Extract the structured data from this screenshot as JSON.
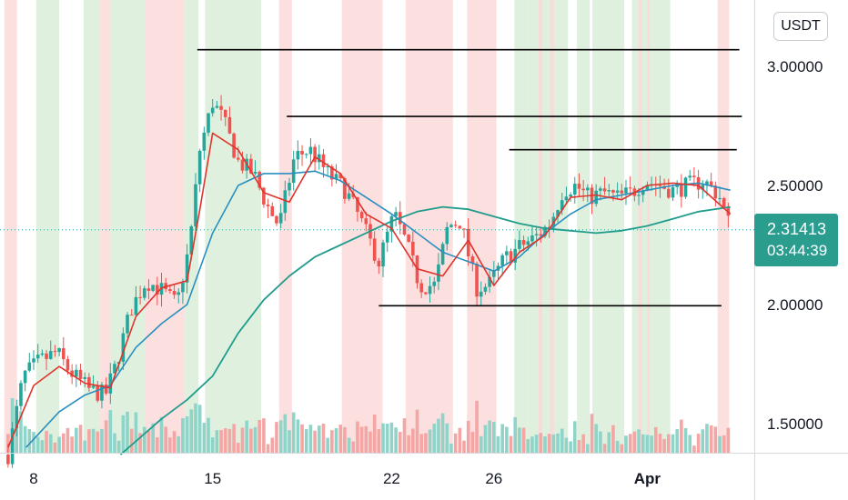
{
  "currency_button": {
    "label": "USDT"
  },
  "last_price": {
    "price": "2.31413",
    "countdown": "03:44:39",
    "value": 2.31413
  },
  "chart_data": {
    "type": "candlestick",
    "y_ticks": [
      {
        "value": 3.0,
        "label": "3.00000"
      },
      {
        "value": 2.5,
        "label": "2.50000"
      },
      {
        "value": 2.0,
        "label": "2.00000"
      },
      {
        "value": 1.5,
        "label": "1.50000"
      }
    ],
    "x_ticks": [
      {
        "day": 8,
        "label": "8"
      },
      {
        "day": 15,
        "label": "15"
      },
      {
        "day": 22,
        "label": "22"
      },
      {
        "day": 26,
        "label": "26"
      },
      {
        "day": 32,
        "label": "Apr"
      }
    ],
    "ylim": [
      1.38,
      3.28
    ],
    "xlim": [
      6.85,
      35.75
    ],
    "colors": {
      "up": "#26a69a",
      "down": "#ef5350",
      "green_zone": "#d9efd8",
      "red_zone": "#fcd9d9",
      "ma_fast": "#e0342c",
      "ma_mid": "#2a8fc0",
      "ma_slow": "#1f9c8c",
      "level": "#000000",
      "price_line": "#26a69a"
    },
    "horizontal_levels": [
      {
        "price": 3.07,
        "from_day": 14.4,
        "to_day": 35.6
      },
      {
        "price": 2.79,
        "from_day": 17.9,
        "to_day": 35.7
      },
      {
        "price": 2.65,
        "from_day": 26.6,
        "to_day": 35.5
      },
      {
        "price": 1.995,
        "from_day": 21.5,
        "to_day": 34.9
      }
    ],
    "zones": [
      {
        "color": "red",
        "from": 6.85,
        "to": 7.35
      },
      {
        "color": "green",
        "from": 8.1,
        "to": 9.0
      },
      {
        "color": "green",
        "from": 9.95,
        "to": 10.6
      },
      {
        "color": "red",
        "from": 10.6,
        "to": 11.0
      },
      {
        "color": "green",
        "from": 11.0,
        "to": 12.35
      },
      {
        "color": "red",
        "from": 12.35,
        "to": 13.9
      },
      {
        "color": "green",
        "from": 13.9,
        "to": 14.45
      },
      {
        "color": "green",
        "from": 14.7,
        "to": 16.9
      },
      {
        "color": "red",
        "from": 17.6,
        "to": 18.1
      },
      {
        "color": "red",
        "from": 20.05,
        "to": 21.65
      },
      {
        "color": "red",
        "from": 22.55,
        "to": 24.4
      },
      {
        "color": "red",
        "from": 24.95,
        "to": 26.1
      },
      {
        "color": "green",
        "from": 26.8,
        "to": 27.3
      },
      {
        "color": "green",
        "from": 27.3,
        "to": 28.9
      },
      {
        "color": "red",
        "from": 27.75,
        "to": 27.9
      },
      {
        "color": "red",
        "from": 28.2,
        "to": 28.35
      },
      {
        "color": "green",
        "from": 29.25,
        "to": 29.75
      },
      {
        "color": "green",
        "from": 29.85,
        "to": 31.1
      },
      {
        "color": "green",
        "from": 31.4,
        "to": 32.9
      },
      {
        "color": "red",
        "from": 31.65,
        "to": 31.8
      },
      {
        "color": "red",
        "from": 32.0,
        "to": 32.1
      },
      {
        "color": "red",
        "from": 34.75,
        "to": 35.2
      }
    ],
    "trend_points": [
      [
        7.0,
        1.37
      ],
      [
        7.6,
        1.7
      ],
      [
        8.2,
        1.76
      ],
      [
        8.9,
        1.8
      ],
      [
        9.4,
        1.72
      ],
      [
        10.2,
        1.64
      ],
      [
        10.8,
        1.62
      ],
      [
        11.2,
        1.74
      ],
      [
        11.8,
        1.98
      ],
      [
        12.4,
        2.1
      ],
      [
        13.0,
        2.06
      ],
      [
        13.6,
        2.0
      ],
      [
        14.1,
        2.25
      ],
      [
        14.5,
        2.65
      ],
      [
        15.0,
        2.85
      ],
      [
        15.4,
        2.78
      ],
      [
        16.0,
        2.6
      ],
      [
        16.6,
        2.55
      ],
      [
        17.1,
        2.42
      ],
      [
        17.6,
        2.33
      ],
      [
        18.2,
        2.62
      ],
      [
        18.8,
        2.65
      ],
      [
        19.5,
        2.55
      ],
      [
        20.2,
        2.48
      ],
      [
        20.8,
        2.35
      ],
      [
        21.5,
        2.18
      ],
      [
        22.1,
        2.38
      ],
      [
        22.6,
        2.25
      ],
      [
        23.1,
        2.08
      ],
      [
        23.7,
        2.08
      ],
      [
        24.2,
        2.33
      ],
      [
        24.7,
        2.35
      ],
      [
        25.3,
        2.07
      ],
      [
        25.8,
        2.08
      ],
      [
        26.4,
        2.19
      ],
      [
        27.1,
        2.25
      ],
      [
        27.6,
        2.28
      ],
      [
        28.2,
        2.34
      ],
      [
        28.7,
        2.48
      ],
      [
        29.2,
        2.5
      ],
      [
        29.7,
        2.45
      ],
      [
        30.3,
        2.47
      ],
      [
        30.8,
        2.45
      ],
      [
        31.4,
        2.47
      ],
      [
        31.9,
        2.52
      ],
      [
        32.5,
        2.5
      ],
      [
        33.0,
        2.48
      ],
      [
        33.6,
        2.5
      ],
      [
        34.2,
        2.52
      ],
      [
        34.8,
        2.46
      ],
      [
        35.25,
        2.32
      ]
    ],
    "moving_average_points": {
      "fast": [
        [
          7.0,
          1.4
        ],
        [
          8.0,
          1.66
        ],
        [
          9.0,
          1.74
        ],
        [
          10.0,
          1.67
        ],
        [
          11.0,
          1.65
        ],
        [
          12.0,
          1.95
        ],
        [
          13.0,
          2.07
        ],
        [
          14.0,
          2.1
        ],
        [
          14.5,
          2.4
        ],
        [
          15.0,
          2.72
        ],
        [
          16.0,
          2.65
        ],
        [
          17.0,
          2.47
        ],
        [
          18.0,
          2.43
        ],
        [
          19.0,
          2.62
        ],
        [
          20.0,
          2.55
        ],
        [
          21.0,
          2.38
        ],
        [
          22.0,
          2.32
        ],
        [
          23.0,
          2.15
        ],
        [
          24.0,
          2.12
        ],
        [
          25.0,
          2.27
        ],
        [
          26.0,
          2.08
        ],
        [
          27.0,
          2.22
        ],
        [
          28.0,
          2.29
        ],
        [
          29.0,
          2.45
        ],
        [
          30.0,
          2.46
        ],
        [
          31.0,
          2.44
        ],
        [
          32.0,
          2.5
        ],
        [
          33.0,
          2.51
        ],
        [
          34.0,
          2.5
        ],
        [
          35.25,
          2.38
        ]
      ],
      "mid": [
        [
          7.7,
          1.4
        ],
        [
          9.0,
          1.55
        ],
        [
          10.0,
          1.62
        ],
        [
          11.0,
          1.66
        ],
        [
          12.0,
          1.82
        ],
        [
          13.0,
          1.92
        ],
        [
          14.0,
          2.0
        ],
        [
          15.0,
          2.3
        ],
        [
          16.0,
          2.5
        ],
        [
          17.0,
          2.55
        ],
        [
          18.0,
          2.55
        ],
        [
          19.0,
          2.56
        ],
        [
          20.0,
          2.52
        ],
        [
          21.0,
          2.45
        ],
        [
          22.0,
          2.38
        ],
        [
          23.0,
          2.3
        ],
        [
          24.0,
          2.22
        ],
        [
          25.0,
          2.18
        ],
        [
          26.0,
          2.14
        ],
        [
          27.0,
          2.2
        ],
        [
          28.0,
          2.3
        ],
        [
          29.0,
          2.38
        ],
        [
          30.0,
          2.44
        ],
        [
          31.0,
          2.46
        ],
        [
          32.0,
          2.48
        ],
        [
          33.0,
          2.5
        ],
        [
          34.0,
          2.51
        ],
        [
          35.25,
          2.48
        ]
      ],
      "slow": [
        [
          11.4,
          1.37
        ],
        [
          13.0,
          1.52
        ],
        [
          14.0,
          1.6
        ],
        [
          15.0,
          1.7
        ],
        [
          16.0,
          1.88
        ],
        [
          17.0,
          2.02
        ],
        [
          18.0,
          2.12
        ],
        [
          19.0,
          2.2
        ],
        [
          20.0,
          2.25
        ],
        [
          21.0,
          2.3
        ],
        [
          22.0,
          2.35
        ],
        [
          23.0,
          2.39
        ],
        [
          24.0,
          2.41
        ],
        [
          25.0,
          2.4
        ],
        [
          26.0,
          2.37
        ],
        [
          27.0,
          2.34
        ],
        [
          28.0,
          2.32
        ],
        [
          29.0,
          2.31
        ],
        [
          30.0,
          2.3
        ],
        [
          31.0,
          2.31
        ],
        [
          32.0,
          2.33
        ],
        [
          33.0,
          2.36
        ],
        [
          34.0,
          2.39
        ],
        [
          35.25,
          2.41
        ]
      ]
    }
  }
}
